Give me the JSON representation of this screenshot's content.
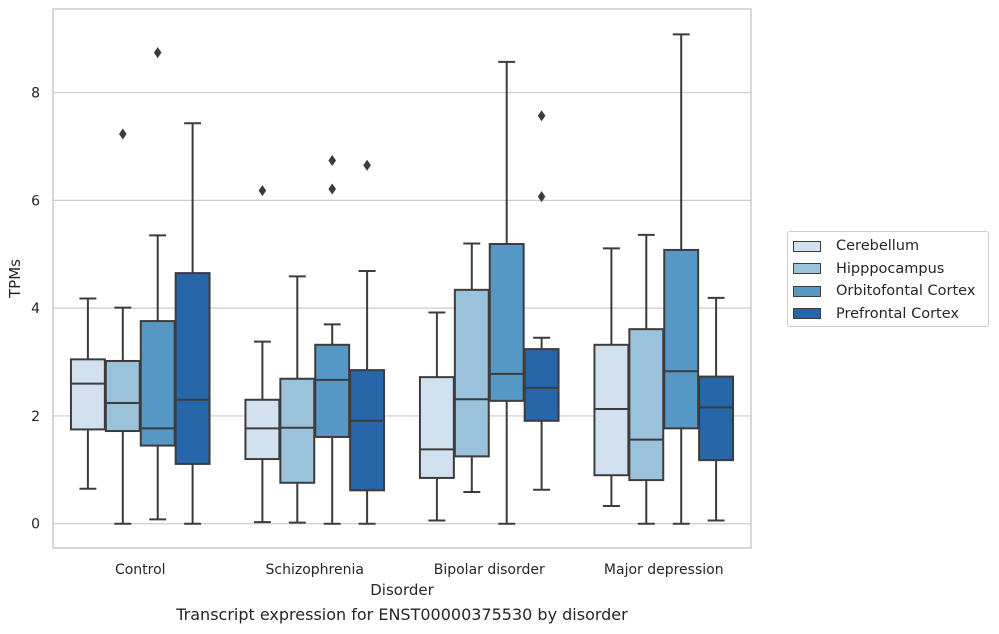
{
  "caption": "Transcript expression for ENST00000375530 by disorder",
  "chart_data": {
    "type": "boxplot",
    "title": "",
    "xlabel": "Disorder",
    "ylabel": "TPMs",
    "ylim": [
      -0.45,
      9.55
    ],
    "yticks": [
      0,
      2,
      4,
      6,
      8
    ],
    "grid": "horizontal",
    "legend_position": "right",
    "categories": [
      "Control",
      "Schizophrenia",
      "Bipolar disorder",
      "Major depression"
    ],
    "series": [
      {
        "name": "Cerebellum",
        "color": "#d1e1f0",
        "boxes": [
          {
            "whisker_low": 0.65,
            "q1": 1.75,
            "median": 2.6,
            "q3": 3.05,
            "whisker_high": 4.18,
            "outliers": []
          },
          {
            "whisker_low": 0.03,
            "q1": 1.2,
            "median": 1.77,
            "q3": 2.3,
            "whisker_high": 3.38,
            "outliers": [
              6.18
            ]
          },
          {
            "whisker_low": 0.06,
            "q1": 0.85,
            "median": 1.38,
            "q3": 2.72,
            "whisker_high": 3.92,
            "outliers": []
          },
          {
            "whisker_low": 0.33,
            "q1": 0.9,
            "median": 2.13,
            "q3": 3.32,
            "whisker_high": 5.11,
            "outliers": []
          }
        ]
      },
      {
        "name": "Hipppocampus",
        "color": "#9ac2db",
        "boxes": [
          {
            "whisker_low": 0.0,
            "q1": 1.72,
            "median": 2.24,
            "q3": 3.02,
            "whisker_high": 4.01,
            "outliers": [
              7.23
            ]
          },
          {
            "whisker_low": 0.02,
            "q1": 0.76,
            "median": 1.78,
            "q3": 2.69,
            "whisker_high": 4.59,
            "outliers": []
          },
          {
            "whisker_low": 0.59,
            "q1": 1.25,
            "median": 2.31,
            "q3": 4.34,
            "whisker_high": 5.2,
            "outliers": []
          },
          {
            "whisker_low": 0.0,
            "q1": 0.81,
            "median": 1.56,
            "q3": 3.61,
            "whisker_high": 5.36,
            "outliers": []
          }
        ]
      },
      {
        "name": "Orbitofontal Cortex",
        "color": "#5597c5",
        "boxes": [
          {
            "whisker_low": 0.08,
            "q1": 1.45,
            "median": 1.77,
            "q3": 3.76,
            "whisker_high": 5.35,
            "outliers": [
              8.74
            ]
          },
          {
            "whisker_low": 0.0,
            "q1": 1.61,
            "median": 2.67,
            "q3": 3.32,
            "whisker_high": 3.7,
            "outliers": [
              6.21,
              6.74
            ]
          },
          {
            "whisker_low": 0.0,
            "q1": 2.28,
            "median": 2.78,
            "q3": 5.19,
            "whisker_high": 8.57,
            "outliers": []
          },
          {
            "whisker_low": 0.0,
            "q1": 1.77,
            "median": 2.83,
            "q3": 5.08,
            "whisker_high": 9.08,
            "outliers": []
          }
        ]
      },
      {
        "name": "Prefrontal Cortex",
        "color": "#2766a8",
        "boxes": [
          {
            "whisker_low": 0.0,
            "q1": 1.11,
            "median": 2.3,
            "q3": 4.65,
            "whisker_high": 7.43,
            "outliers": []
          },
          {
            "whisker_low": 0.0,
            "q1": 0.62,
            "median": 1.91,
            "q3": 2.85,
            "whisker_high": 4.69,
            "outliers": [
              6.65
            ]
          },
          {
            "whisker_low": 0.63,
            "q1": 1.91,
            "median": 2.52,
            "q3": 3.24,
            "whisker_high": 3.45,
            "outliers": [
              6.07,
              7.57
            ]
          },
          {
            "whisker_low": 0.06,
            "q1": 1.18,
            "median": 2.16,
            "q3": 2.73,
            "whisker_high": 4.19,
            "outliers": []
          }
        ]
      }
    ]
  }
}
